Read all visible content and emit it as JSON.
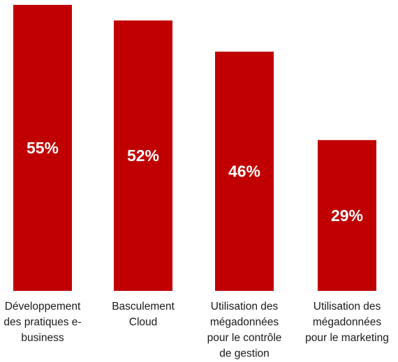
{
  "chart_data": {
    "type": "bar",
    "categories": [
      [
        "Développement",
        "des pratiques e-",
        "business"
      ],
      [
        "Basculement",
        "Cloud"
      ],
      [
        "Utilisation des",
        "mégadonnées",
        "pour le contrôle",
        "de gestion"
      ],
      [
        "Utilisation des",
        "mégadonnées",
        "pour le marketing"
      ]
    ],
    "values": [
      55,
      52,
      46,
      29
    ],
    "value_labels": [
      "55%",
      "52%",
      "46%",
      "29%"
    ],
    "bar_color": "#c00000",
    "label_color": "#ffffff",
    "ylim": [
      0,
      55
    ],
    "grid": false,
    "legend": "none"
  }
}
